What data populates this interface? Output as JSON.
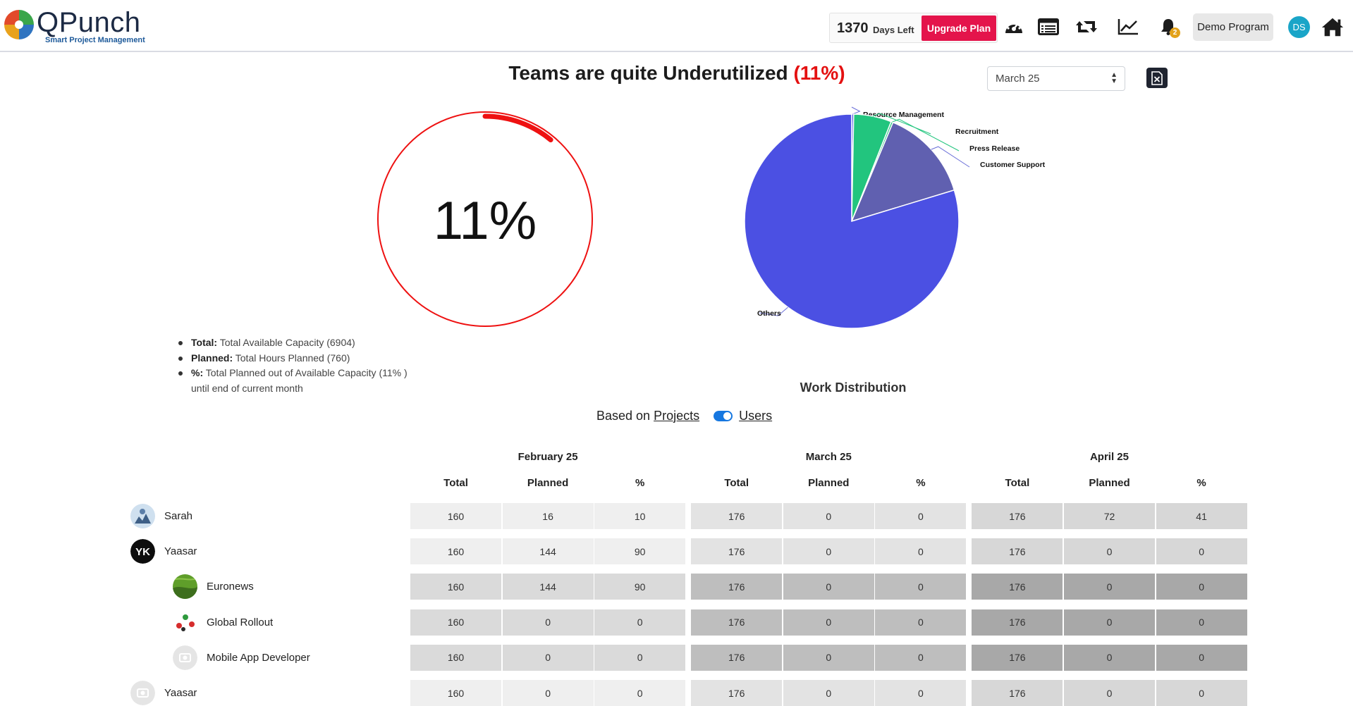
{
  "header": {
    "logo_name": "QPunch",
    "logo_tagline": "Smart Project Management",
    "days_left_number": "1370",
    "days_left_label": "Days Left",
    "upgrade_label": "Upgrade Plan",
    "icons": [
      "dashboard-gauge-icon",
      "list-view-icon",
      "retweet-sync-icon",
      "line-chart-icon",
      "bell-icon",
      "home-icon"
    ],
    "notification_count": "2",
    "program_label": "Demo Program",
    "user_initials": "DS"
  },
  "summary": {
    "title_text": "Teams are quite Underutilized",
    "title_pct": "(11%)",
    "selected_month": "March 25",
    "gauge_value_text": "11%",
    "gauge_fraction": 0.11,
    "gauge_color": "#e41111",
    "legend": [
      {
        "key": "Total:",
        "text": "Total Available Capacity (6904)"
      },
      {
        "key": "Planned:",
        "text": "Total Hours Planned (760)"
      },
      {
        "key": "%:",
        "text": "Total Planned out of Available Capacity (11% )",
        "extra": "until end of current month"
      }
    ]
  },
  "chart_data": {
    "type": "pie",
    "title": "Work Distribution",
    "slices": [
      {
        "label": "Resource Management",
        "value": 0.3,
        "color": "#4b50e3"
      },
      {
        "label": "Recruitment",
        "value": 5.7,
        "color": "#22c57e"
      },
      {
        "label": "Press Release",
        "value": 0.3,
        "color": "#22c57e"
      },
      {
        "label": "Customer Support",
        "value": 14,
        "color": "#6060b0"
      },
      {
        "label": "Others",
        "value": 79.7,
        "color": "#4b50e3"
      }
    ],
    "legend": "labels on slices"
  },
  "toggle": {
    "prefix": "Based on",
    "left_label": "Projects",
    "right_label": "Users",
    "state": "Users"
  },
  "table": {
    "months": [
      "February 25",
      "March 25",
      "April 25"
    ],
    "columns": [
      "Total",
      "Planned",
      "%"
    ],
    "rows": [
      {
        "name": "Sarah",
        "indent": 0,
        "avatar": "photo",
        "values": [
          "160",
          "16",
          "10",
          "176",
          "0",
          "0",
          "176",
          "72",
          "41"
        ]
      },
      {
        "name": "Yaasar",
        "indent": 0,
        "avatar": "yk-logo",
        "values": [
          "160",
          "144",
          "90",
          "176",
          "0",
          "0",
          "176",
          "0",
          "0"
        ]
      },
      {
        "name": "Euronews",
        "indent": 1,
        "avatar": "green-field",
        "values": [
          "160",
          "144",
          "90",
          "176",
          "0",
          "0",
          "176",
          "0",
          "0"
        ]
      },
      {
        "name": "Global Rollout",
        "indent": 1,
        "avatar": "flags",
        "values": [
          "160",
          "0",
          "0",
          "176",
          "0",
          "0",
          "176",
          "0",
          "0"
        ]
      },
      {
        "name": "Mobile App Developer",
        "indent": 1,
        "avatar": "placeholder",
        "values": [
          "160",
          "0",
          "0",
          "176",
          "0",
          "0",
          "176",
          "0",
          "0"
        ]
      },
      {
        "name": "Yaasar",
        "indent": 0,
        "avatar": "placeholder",
        "values": [
          "160",
          "0",
          "0",
          "176",
          "0",
          "0",
          "176",
          "0",
          "0"
        ]
      }
    ]
  }
}
